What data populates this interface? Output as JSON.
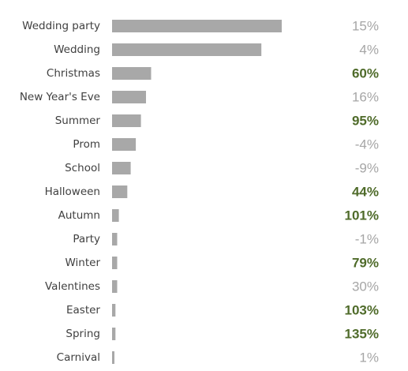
{
  "chart_data": {
    "type": "bar",
    "orientation": "horizontal",
    "title": "",
    "xlabel": "",
    "ylabel": "",
    "categories": [
      "Wedding party",
      "Wedding",
      "Christmas",
      "New Year's Eve",
      "Summer",
      "Prom",
      "School",
      "Halloween",
      "Autumn",
      "Party",
      "Winter",
      "Valentines",
      "Easter",
      "Spring",
      "Carnival"
    ],
    "values": [
      100,
      88,
      23,
      20,
      17,
      14,
      11,
      9,
      4,
      3,
      3,
      3,
      2,
      2,
      1
    ],
    "changes": [
      "15%",
      "4%",
      "60%",
      "16%",
      "95%",
      "-4%",
      "-9%",
      "44%",
      "101%",
      "-1%",
      "79%",
      "30%",
      "103%",
      "135%",
      "1%"
    ],
    "highlighted": [
      false,
      false,
      true,
      false,
      true,
      false,
      false,
      true,
      true,
      false,
      true,
      false,
      true,
      true,
      false
    ],
    "xlim": [
      0,
      100
    ],
    "grid": false,
    "legend": "none",
    "bar_color": "#a8a8a8",
    "highlight_color": "#4f6b2a",
    "change_color": "#a6a6a6",
    "label_color": "#404040"
  }
}
